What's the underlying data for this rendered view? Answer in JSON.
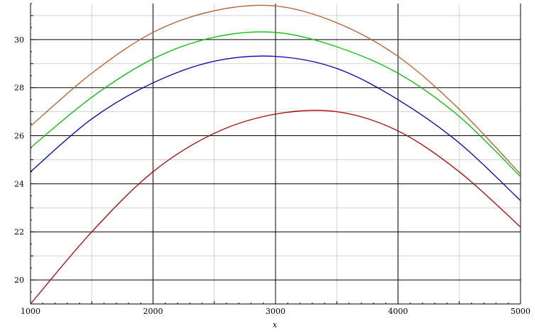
{
  "chart_data": {
    "type": "line",
    "title": "",
    "xlabel": "x",
    "ylabel": "",
    "xlim": [
      1000,
      5000
    ],
    "ylim": [
      19,
      31.5
    ],
    "grid": true,
    "x_ticks": [
      1000,
      2000,
      3000,
      4000,
      5000
    ],
    "y_ticks": [
      20,
      22,
      24,
      26,
      28,
      30
    ],
    "x_tick_labels": [
      "1000",
      "2000",
      "3000",
      "4000",
      "5000"
    ],
    "y_tick_labels": [
      "20",
      "22",
      "24",
      "26",
      "28",
      "30"
    ],
    "x": [
      1000,
      1500,
      2000,
      2500,
      3000,
      3500,
      4000,
      4500,
      5000
    ],
    "series": [
      {
        "color": "#b85c2a",
        "values": [
          26.4,
          28.6,
          30.3,
          31.2,
          31.4,
          30.7,
          29.3,
          27.1,
          24.4
        ]
      },
      {
        "color": "#00c000",
        "values": [
          25.5,
          27.6,
          29.2,
          30.1,
          30.3,
          29.7,
          28.6,
          26.8,
          24.3
        ]
      },
      {
        "color": "#0000b0",
        "values": [
          24.5,
          26.7,
          28.2,
          29.1,
          29.3,
          28.8,
          27.5,
          25.7,
          23.3
        ]
      },
      {
        "color": "#b00000",
        "values": [
          19.0,
          22.0,
          24.5,
          26.1,
          26.9,
          27.0,
          26.2,
          24.5,
          22.2
        ]
      }
    ]
  }
}
